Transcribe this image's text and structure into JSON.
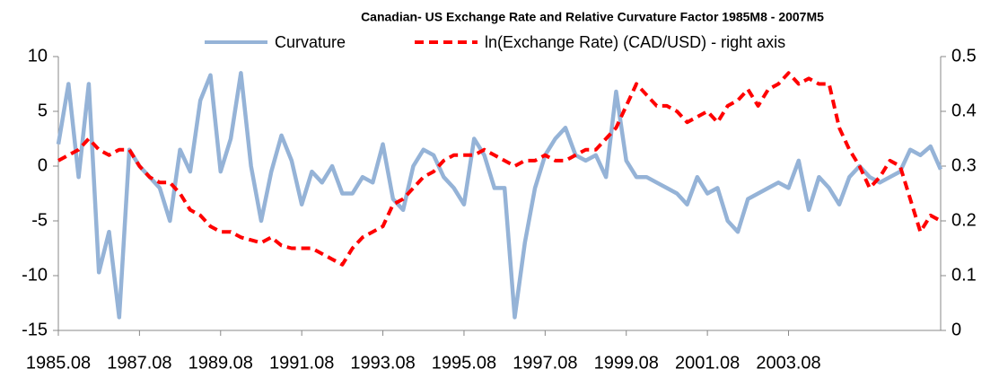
{
  "chart_data": {
    "type": "line",
    "title": "Canadian- US Exchange Rate and Relative Curvature Factor  1985M8 - 2007M5",
    "categories": [
      "1985.08",
      null,
      null,
      null,
      null,
      null,
      null,
      null,
      "1987.08",
      null,
      null,
      null,
      null,
      null,
      null,
      null,
      "1989.08",
      null,
      null,
      null,
      null,
      null,
      null,
      null,
      "1991.08",
      null,
      null,
      null,
      null,
      null,
      null,
      null,
      "1993.08",
      null,
      null,
      null,
      null,
      null,
      null,
      null,
      "1995.08",
      null,
      null,
      null,
      null,
      null,
      null,
      null,
      "1997.08",
      null,
      null,
      null,
      null,
      null,
      null,
      null,
      "1999.08",
      null,
      null,
      null,
      null,
      null,
      null,
      null,
      "2001.08",
      null,
      null,
      null,
      null,
      null,
      null,
      null,
      "2003.08",
      null,
      null,
      null,
      null,
      null,
      null,
      null,
      null,
      null,
      null,
      null,
      null,
      null,
      null,
      null
    ],
    "series": [
      {
        "name": "Curvature",
        "color": "#95b3d7",
        "axis": "y",
        "values": [
          2,
          7.5,
          -1,
          7.5,
          -9.7,
          -6,
          -13.8,
          1.5,
          0,
          -1,
          -2,
          -5,
          1.5,
          -0.5,
          6,
          8.3,
          -0.5,
          2.5,
          8.5,
          0,
          -5,
          -0.5,
          2.8,
          0.5,
          -3.5,
          -0.5,
          -1.5,
          0,
          -2.5,
          -2.5,
          -1,
          -1.5,
          2,
          -3,
          -4,
          0,
          1.5,
          1,
          -1,
          -2,
          -3.5,
          2.5,
          1,
          -2,
          -2,
          -13.8,
          -7,
          -2,
          1,
          2.5,
          3.5,
          1,
          0.5,
          1,
          -1,
          6.8,
          0.5,
          -1,
          -1,
          -1.5,
          -2,
          -2.5,
          -3.5,
          -1,
          -2.5,
          -2,
          -5,
          -6,
          -3,
          -2.5,
          -2,
          -1.5,
          -2,
          0.5,
          -4,
          -1,
          -2,
          -3.5,
          -1,
          0,
          -1,
          -1.5,
          -1,
          -0.5,
          1.5,
          1,
          1.8,
          -0.3
        ]
      },
      {
        "name": "ln(Exchange Rate) (CAD/USD) - right axis",
        "color": "#ff0000",
        "axis": "y2",
        "dashed": true,
        "values": [
          0.31,
          0.32,
          0.33,
          0.35,
          0.33,
          0.32,
          0.33,
          0.33,
          0.3,
          0.28,
          0.27,
          0.27,
          0.25,
          0.22,
          0.21,
          0.19,
          0.18,
          0.18,
          0.17,
          0.165,
          0.16,
          0.17,
          0.155,
          0.15,
          0.15,
          0.15,
          0.14,
          0.13,
          0.12,
          0.15,
          0.17,
          0.18,
          0.19,
          0.23,
          0.24,
          0.26,
          0.28,
          0.29,
          0.31,
          0.32,
          0.32,
          0.32,
          0.33,
          0.32,
          0.31,
          0.3,
          0.31,
          0.31,
          0.32,
          0.31,
          0.31,
          0.32,
          0.33,
          0.33,
          0.35,
          0.37,
          0.41,
          0.45,
          0.43,
          0.41,
          0.41,
          0.4,
          0.38,
          0.39,
          0.4,
          0.38,
          0.41,
          0.42,
          0.44,
          0.41,
          0.44,
          0.45,
          0.47,
          0.45,
          0.46,
          0.45,
          0.45,
          0.37,
          0.33,
          0.3,
          0.26,
          0.28,
          0.31,
          0.3,
          0.24,
          0.18,
          0.21,
          0.2
        ]
      }
    ],
    "ylim": [
      -15,
      10
    ],
    "yticks": [
      -15,
      -10,
      -5,
      0,
      5,
      10
    ],
    "y2lim": [
      0,
      0.5
    ],
    "y2ticks": [
      0,
      0.1,
      0.2,
      0.3,
      0.4,
      0.5
    ],
    "legend": "top",
    "grid": false
  }
}
